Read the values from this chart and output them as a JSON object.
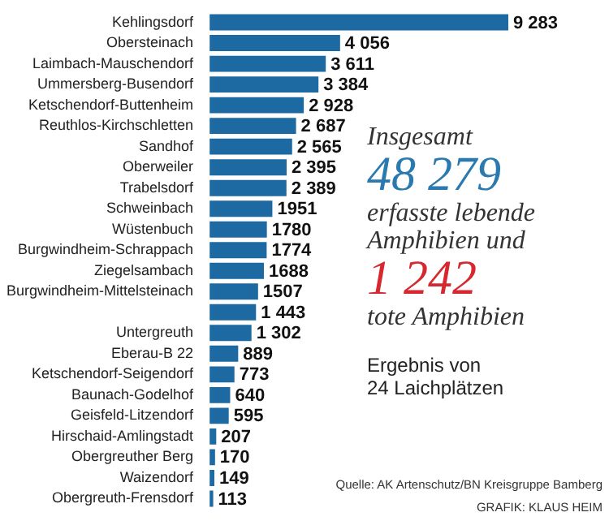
{
  "chart_data": {
    "type": "bar",
    "orientation": "horizontal",
    "color": "#1d6aa2",
    "categories": [
      "Kehlingsdorf",
      "Obersteinach",
      "Laimbach-Mauschendorf",
      "Ummersberg-Busendorf",
      "Ketschendorf-Buttenheim",
      "Reuthlos-Kirchschletten",
      "Sandhof",
      "Oberweiler",
      "Trabelsdorf",
      "Schweinbach",
      "Wüstenbuch",
      "Burgwindheim-Schrappach",
      "Ziegelsambach",
      "Burgwindheim-Mittelsteinach",
      null,
      "Untergreuth",
      "Eberau-B 22",
      "Ketschendorf-Seigendorf",
      "Baunach-Godelhof",
      "Geisfeld-Litzendorf",
      "Hirschaid-Amlingstadt",
      "Obergreuther Berg",
      "Waizendorf",
      "Obergreuth-Frensdorf"
    ],
    "values": [
      9283,
      4056,
      3611,
      3384,
      2928,
      2687,
      2565,
      2395,
      2389,
      1951,
      1780,
      1774,
      1688,
      1507,
      1443,
      1302,
      889,
      773,
      640,
      595,
      207,
      170,
      149,
      113
    ],
    "value_labels": [
      "9 283",
      "4 056",
      "3 611",
      "3 384",
      "2 928",
      "2 687",
      "2 565",
      "2 395",
      "2 389",
      "1951",
      "1780",
      "1774",
      "1688",
      "1507",
      "1 443",
      "1 302",
      "889",
      "773",
      "640",
      "595",
      "207",
      "170",
      "149",
      "113"
    ],
    "annotations": [
      "Insgesamt",
      "48 279",
      "erfasste lebende",
      "Amphibien und",
      "1 242",
      "tote Amphibien",
      "Ergebnis von",
      "24 Laichplätzen",
      "Quelle: AK Artenschutz/BN Kreisgruppe Bamberg",
      "GRAFIK: KLAUS HEIM"
    ],
    "legend": false
  }
}
